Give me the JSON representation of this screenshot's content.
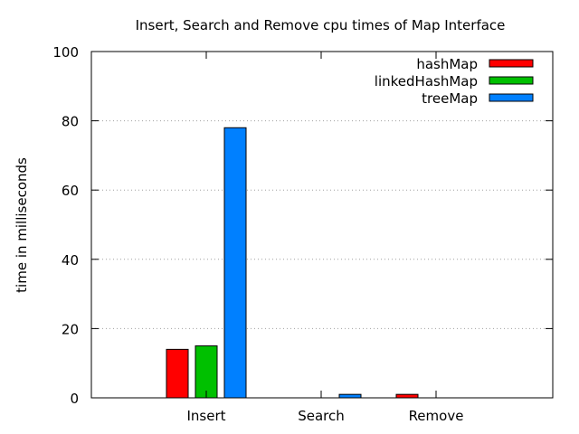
{
  "chart_data": {
    "type": "bar",
    "title": "Insert, Search and Remove cpu times of Map Interface",
    "xlabel": "",
    "ylabel": "time in milliseconds",
    "categories": [
      "Insert",
      "Search",
      "Remove"
    ],
    "ylim": [
      0,
      100
    ],
    "yticks": [
      0,
      20,
      40,
      60,
      80,
      100
    ],
    "grid": true,
    "legend_position": "top-right",
    "series": [
      {
        "name": "hashMap",
        "color": "#ff0000",
        "values": [
          14,
          0,
          1
        ]
      },
      {
        "name": "linkedHashMap",
        "color": "#00c000",
        "values": [
          15,
          0,
          0
        ]
      },
      {
        "name": "treeMap",
        "color": "#0080ff",
        "values": [
          78,
          1,
          0
        ]
      }
    ]
  }
}
